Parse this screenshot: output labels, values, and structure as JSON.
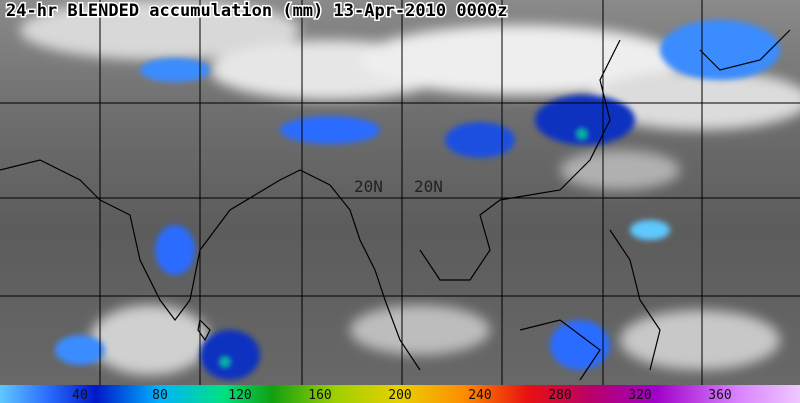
{
  "title": "24-hr BLENDED accumulation (mm) 13-Apr-2010 0000z",
  "grid_labels": [
    "20N",
    "20N"
  ],
  "colorbar": {
    "ticks": [
      40,
      80,
      120,
      160,
      200,
      240,
      280,
      320,
      360
    ]
  }
}
